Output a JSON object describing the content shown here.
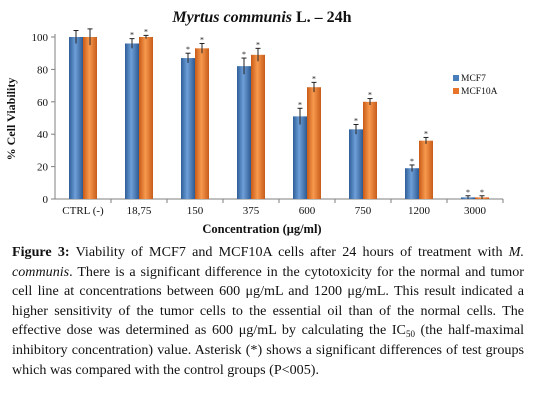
{
  "chart_data": {
    "type": "bar",
    "title_italic": "Myrtus communis",
    "title_rest": " L. – 24h",
    "xlabel": "Concentration (μg/ml)",
    "ylabel": "% Cell Viability",
    "categories": [
      "CTRL (-)",
      "18,75",
      "150",
      "375",
      "600",
      "750",
      "1200",
      "3000"
    ],
    "ylim": [
      0,
      100
    ],
    "yticks": [
      0,
      20,
      40,
      60,
      80,
      100
    ],
    "grid": false,
    "legend_position": "right",
    "series": [
      {
        "name": "MCF7",
        "color": "#4a7ebb",
        "values": [
          100,
          96,
          87,
          82,
          51,
          43,
          19,
          1
        ],
        "errors": [
          4,
          3,
          3,
          5,
          5,
          3,
          2,
          1
        ],
        "asterisk": [
          false,
          true,
          true,
          true,
          true,
          true,
          true,
          true
        ]
      },
      {
        "name": "MCF10A",
        "color": "#e8742a",
        "values": [
          100,
          100,
          93,
          89,
          69,
          60,
          36,
          1
        ],
        "errors": [
          5,
          1,
          3,
          4,
          3,
          2,
          2,
          1
        ],
        "asterisk": [
          false,
          true,
          true,
          true,
          true,
          true,
          true,
          true
        ]
      }
    ]
  },
  "caption": {
    "label": "Figure 3:",
    "t1": " Viability of MCF7 and MCF10A cells after 24 hours of treatment with ",
    "species": "M. communis",
    "t2": ". There is a significant difference in the cytotoxicity for the normal and tumor cell line at concentrations between 600 μg/mL and 1200 μg/mL. This result indicated a higher sensitivity of the tumor cells to the essential oil than of the normal cells. The effective dose was determined as 600 μg/mL by calculating the IC",
    "sub": "50",
    "t3": " (the half-maximal inhibitory concentration) value. Asterisk (*) shows a significant differences of test groups which was compared with the control groups (P<005)."
  }
}
